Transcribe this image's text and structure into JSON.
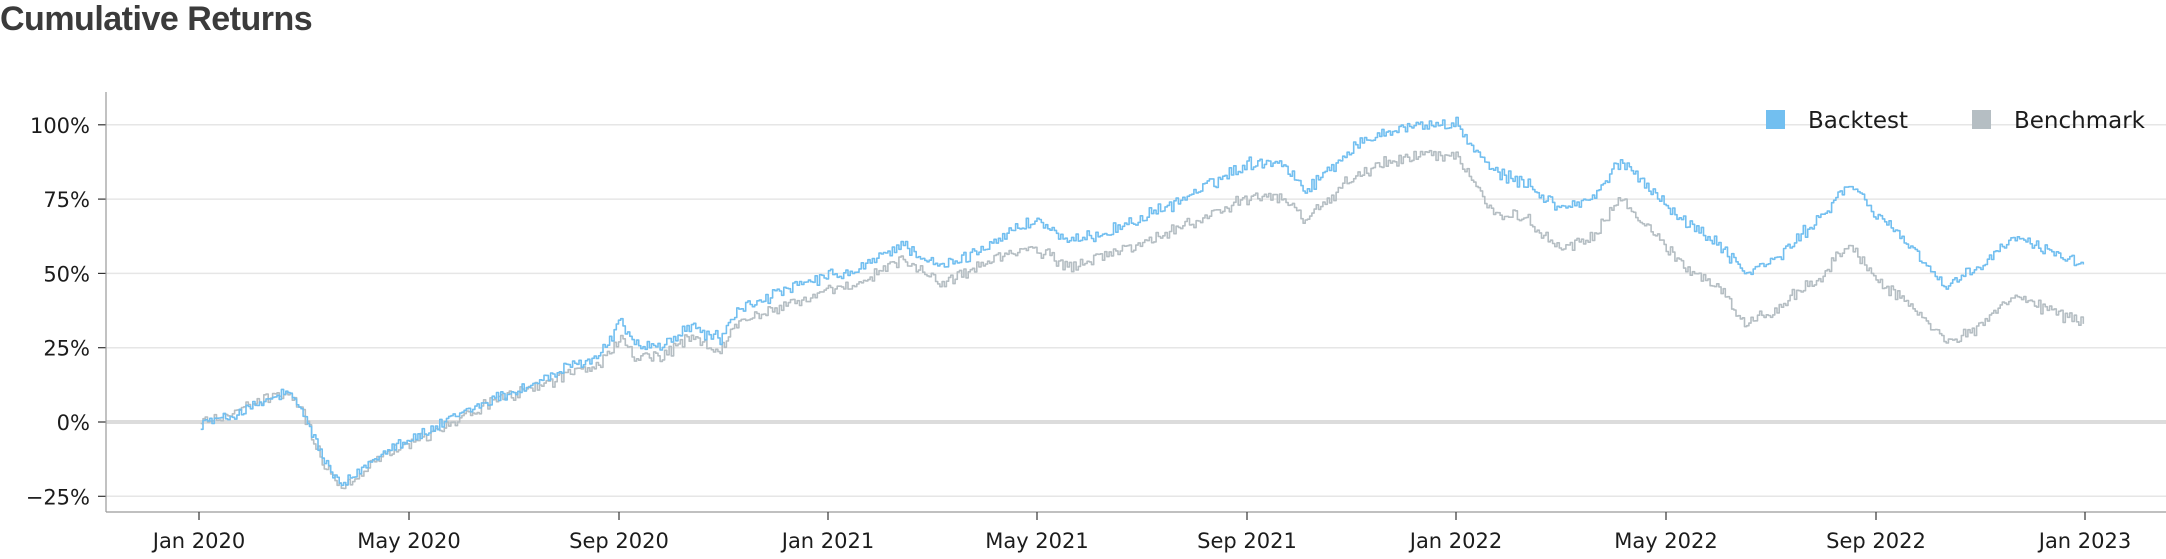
{
  "chart_data": {
    "type": "line",
    "title": "Cumulative Returns",
    "xlabel": "",
    "ylabel": "",
    "x_ticks": [
      "Jan 2020",
      "May 2020",
      "Sep 2020",
      "Jan 2021",
      "May 2021",
      "Sep 2021",
      "Jan 2022",
      "May 2022",
      "Sep 2022",
      "Jan 2023"
    ],
    "y_ticks": [
      "100%",
      "75%",
      "50%",
      "25%",
      "0%",
      "−25%"
    ],
    "ylim": [
      -30,
      110
    ],
    "xlim": [
      "2019-12-01",
      "2023-02-01"
    ],
    "grid": "horizontal",
    "legend_position": "top-right",
    "series": [
      {
        "name": "Backtest",
        "color": "#72bff0",
        "points": [
          [
            "2020-01-02",
            0
          ],
          [
            "2020-01-15",
            1
          ],
          [
            "2020-02-01",
            5
          ],
          [
            "2020-02-20",
            10
          ],
          [
            "2020-03-01",
            3
          ],
          [
            "2020-03-12",
            -12
          ],
          [
            "2020-03-23",
            -22
          ],
          [
            "2020-04-05",
            -15
          ],
          [
            "2020-04-20",
            -8
          ],
          [
            "2020-05-10",
            -4
          ],
          [
            "2020-06-01",
            3
          ],
          [
            "2020-06-20",
            8
          ],
          [
            "2020-07-10",
            12
          ],
          [
            "2020-08-01",
            18
          ],
          [
            "2020-08-20",
            22
          ],
          [
            "2020-09-02",
            34
          ],
          [
            "2020-09-10",
            26
          ],
          [
            "2020-09-25",
            25
          ],
          [
            "2020-10-12",
            32
          ],
          [
            "2020-10-30",
            28
          ],
          [
            "2020-11-10",
            38
          ],
          [
            "2020-12-01",
            43
          ],
          [
            "2020-12-31",
            49
          ],
          [
            "2021-01-15",
            50
          ],
          [
            "2021-02-12",
            60
          ],
          [
            "2021-03-05",
            52
          ],
          [
            "2021-03-20",
            55
          ],
          [
            "2021-04-15",
            64
          ],
          [
            "2021-05-01",
            68
          ],
          [
            "2021-05-20",
            60
          ],
          [
            "2021-06-20",
            66
          ],
          [
            "2021-07-15",
            72
          ],
          [
            "2021-08-10",
            80
          ],
          [
            "2021-09-01",
            87
          ],
          [
            "2021-09-20",
            88
          ],
          [
            "2021-10-05",
            78
          ],
          [
            "2021-11-01",
            92
          ],
          [
            "2021-11-20",
            98
          ],
          [
            "2021-12-10",
            100
          ],
          [
            "2022-01-01",
            100
          ],
          [
            "2022-01-20",
            85
          ],
          [
            "2022-02-10",
            80
          ],
          [
            "2022-03-01",
            72
          ],
          [
            "2022-03-20",
            75
          ],
          [
            "2022-04-05",
            88
          ],
          [
            "2022-04-20",
            80
          ],
          [
            "2022-05-10",
            68
          ],
          [
            "2022-06-01",
            60
          ],
          [
            "2022-06-16",
            50
          ],
          [
            "2022-07-05",
            55
          ],
          [
            "2022-08-01",
            70
          ],
          [
            "2022-08-16",
            80
          ],
          [
            "2022-09-01",
            70
          ],
          [
            "2022-09-20",
            60
          ],
          [
            "2022-10-12",
            45
          ],
          [
            "2022-10-31",
            52
          ],
          [
            "2022-11-20",
            62
          ],
          [
            "2022-12-10",
            58
          ],
          [
            "2022-12-31",
            53
          ]
        ]
      },
      {
        "name": "Benchmark",
        "color": "#b5bec3",
        "points": [
          [
            "2020-01-02",
            0
          ],
          [
            "2020-01-15",
            2
          ],
          [
            "2020-02-01",
            6
          ],
          [
            "2020-02-20",
            10
          ],
          [
            "2020-03-01",
            3
          ],
          [
            "2020-03-12",
            -13
          ],
          [
            "2020-03-23",
            -23
          ],
          [
            "2020-04-05",
            -16
          ],
          [
            "2020-04-20",
            -9
          ],
          [
            "2020-05-10",
            -5
          ],
          [
            "2020-06-01",
            2
          ],
          [
            "2020-06-20",
            7
          ],
          [
            "2020-07-10",
            11
          ],
          [
            "2020-08-01",
            16
          ],
          [
            "2020-08-20",
            19
          ],
          [
            "2020-09-02",
            28
          ],
          [
            "2020-09-10",
            22
          ],
          [
            "2020-09-25",
            22
          ],
          [
            "2020-10-12",
            28
          ],
          [
            "2020-10-30",
            24
          ],
          [
            "2020-11-10",
            34
          ],
          [
            "2020-12-01",
            38
          ],
          [
            "2020-12-31",
            44
          ],
          [
            "2021-01-15",
            45
          ],
          [
            "2021-02-12",
            55
          ],
          [
            "2021-03-05",
            47
          ],
          [
            "2021-03-20",
            50
          ],
          [
            "2021-04-15",
            57
          ],
          [
            "2021-05-01",
            58
          ],
          [
            "2021-05-20",
            52
          ],
          [
            "2021-06-20",
            58
          ],
          [
            "2021-07-15",
            63
          ],
          [
            "2021-08-10",
            70
          ],
          [
            "2021-09-01",
            75
          ],
          [
            "2021-09-20",
            76
          ],
          [
            "2021-10-05",
            68
          ],
          [
            "2021-11-01",
            82
          ],
          [
            "2021-11-20",
            87
          ],
          [
            "2021-12-10",
            90
          ],
          [
            "2022-01-01",
            90
          ],
          [
            "2022-01-20",
            72
          ],
          [
            "2022-02-10",
            68
          ],
          [
            "2022-03-01",
            58
          ],
          [
            "2022-03-20",
            62
          ],
          [
            "2022-04-05",
            75
          ],
          [
            "2022-04-20",
            66
          ],
          [
            "2022-05-10",
            53
          ],
          [
            "2022-06-01",
            45
          ],
          [
            "2022-06-16",
            33
          ],
          [
            "2022-07-05",
            38
          ],
          [
            "2022-08-01",
            50
          ],
          [
            "2022-08-16",
            60
          ],
          [
            "2022-09-01",
            48
          ],
          [
            "2022-09-20",
            40
          ],
          [
            "2022-10-12",
            26
          ],
          [
            "2022-10-31",
            32
          ],
          [
            "2022-11-20",
            42
          ],
          [
            "2022-12-10",
            38
          ],
          [
            "2022-12-31",
            33
          ]
        ]
      }
    ]
  }
}
